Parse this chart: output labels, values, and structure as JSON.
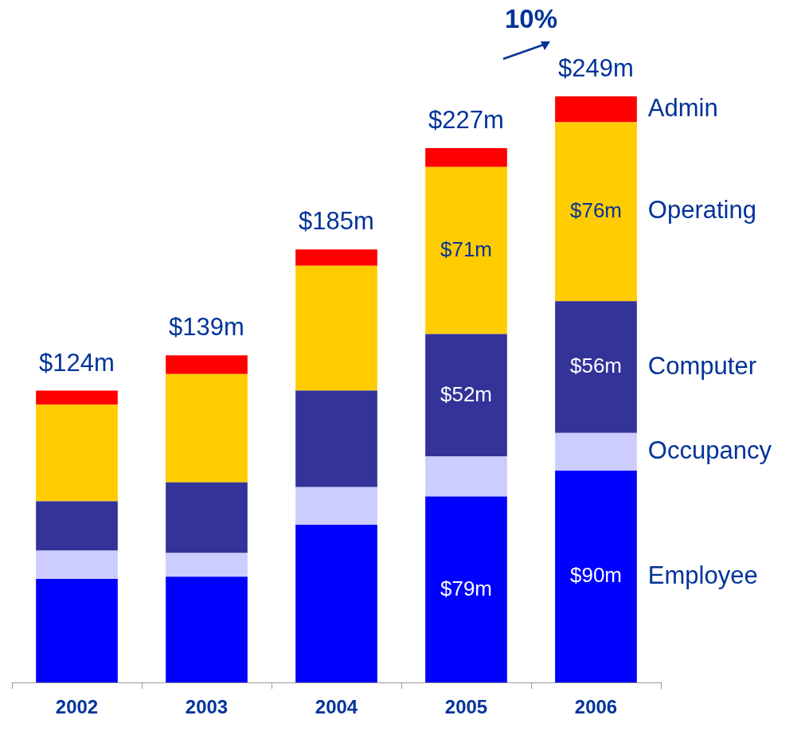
{
  "chart_data": {
    "type": "bar",
    "stacked": true,
    "categories": [
      "2002",
      "2003",
      "2004",
      "2005",
      "2006"
    ],
    "series": [
      {
        "name": "Employee",
        "color": "#0000ff",
        "values": [
          44,
          45,
          67,
          79,
          90
        ],
        "value_labels": [
          null,
          null,
          null,
          "$79m",
          "$90m"
        ]
      },
      {
        "name": "Occupancy",
        "color": "#ccccff",
        "values": [
          12,
          10,
          16,
          17,
          16
        ]
      },
      {
        "name": "Computer",
        "color": "#333399",
        "values": [
          21,
          30,
          41,
          52,
          56
        ],
        "value_labels": [
          null,
          null,
          null,
          "$52m",
          "$56m"
        ]
      },
      {
        "name": "Operating",
        "color": "#ffcc00",
        "values": [
          41,
          46,
          53,
          71,
          76
        ],
        "value_labels": [
          null,
          null,
          null,
          "$71m",
          "$76m"
        ]
      },
      {
        "name": "Admin",
        "color": "#ff0000",
        "values": [
          6,
          8,
          7,
          8,
          11
        ]
      }
    ],
    "totals": [
      "$124m",
      "$139m",
      "$185m",
      "$227m",
      "$249m"
    ],
    "annotations": [
      "10%"
    ],
    "tick_labels": "x",
    "legend": false,
    "grid": false
  }
}
